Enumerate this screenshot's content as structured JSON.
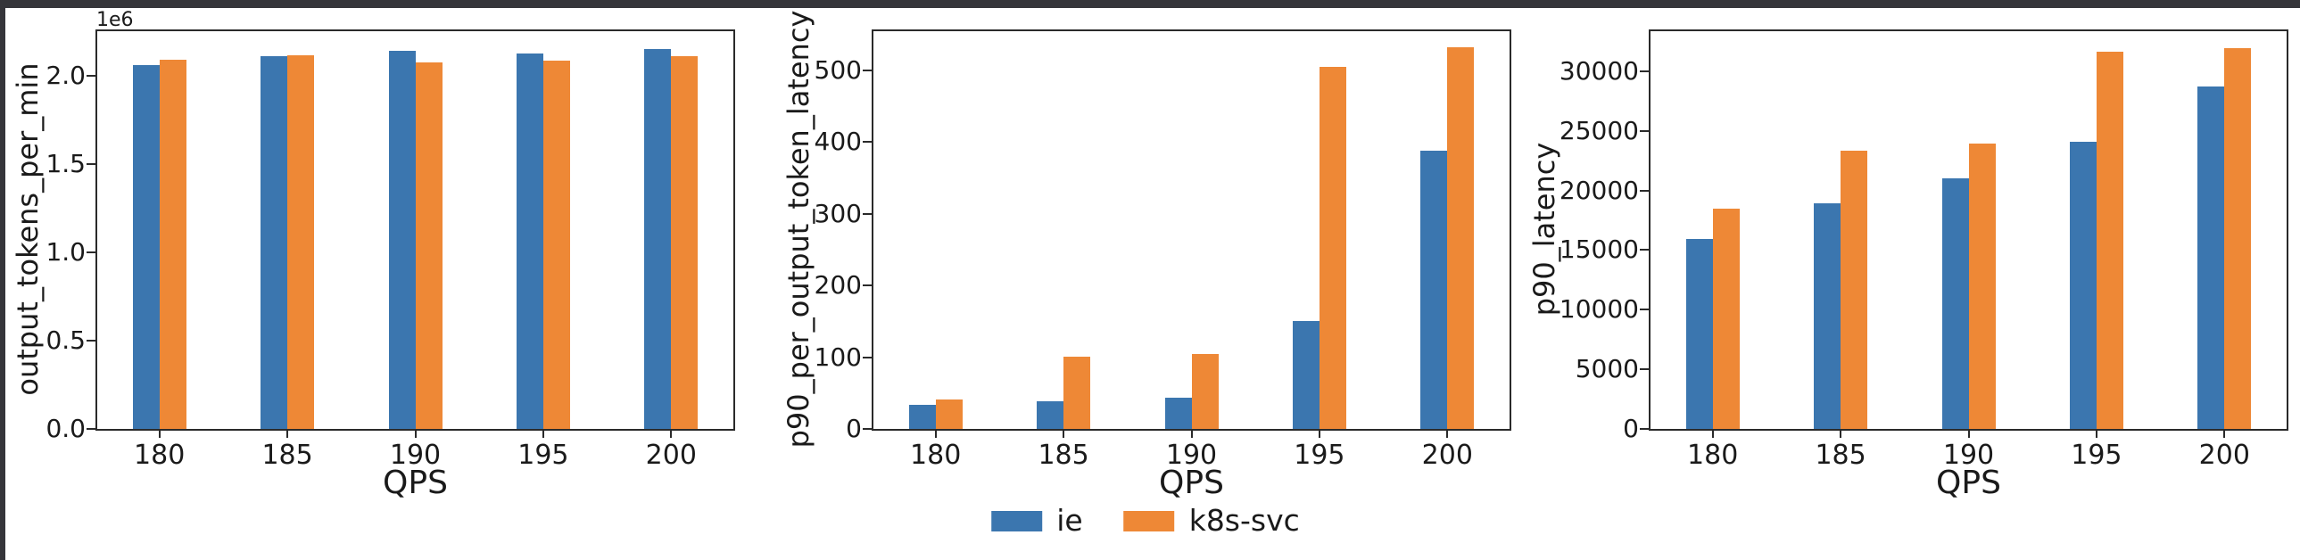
{
  "chart_data": [
    {
      "type": "bar",
      "title": "",
      "xlabel": "QPS",
      "ylabel": "output_tokens_per_min",
      "offset_text": "1e6",
      "categories": [
        "180",
        "185",
        "190",
        "195",
        "200"
      ],
      "series": [
        {
          "name": "ie",
          "color": "#3B76AF",
          "values": [
            2060000,
            2110000,
            2140000,
            2125000,
            2150000
          ]
        },
        {
          "name": "k8s-svc",
          "color": "#EE8836",
          "values": [
            2090000,
            2112000,
            2075000,
            2085000,
            2110000
          ]
        }
      ],
      "ylim": [
        0,
        2260000
      ],
      "yticks": [
        {
          "value": 0,
          "label": "0.0"
        },
        {
          "value": 500000,
          "label": "0.5"
        },
        {
          "value": 1000000,
          "label": "1.0"
        },
        {
          "value": 1500000,
          "label": "1.5"
        },
        {
          "value": 2000000,
          "label": "2.0"
        }
      ],
      "grid": false,
      "legend_position": "figure-bottom-center"
    },
    {
      "type": "bar",
      "title": "",
      "xlabel": "QPS",
      "ylabel": "p90_per_output_token_latency",
      "offset_text": "",
      "categories": [
        "180",
        "185",
        "190",
        "195",
        "200"
      ],
      "series": [
        {
          "name": "ie",
          "color": "#3B76AF",
          "values": [
            33,
            39,
            44,
            150,
            388
          ]
        },
        {
          "name": "k8s-svc",
          "color": "#EE8836",
          "values": [
            41,
            101,
            105,
            505,
            532
          ]
        }
      ],
      "ylim": [
        0,
        557
      ],
      "yticks": [
        {
          "value": 0,
          "label": "0"
        },
        {
          "value": 100,
          "label": "100"
        },
        {
          "value": 200,
          "label": "200"
        },
        {
          "value": 300,
          "label": "300"
        },
        {
          "value": 400,
          "label": "400"
        },
        {
          "value": 500,
          "label": "500"
        }
      ],
      "grid": false,
      "legend_position": "figure-bottom-center"
    },
    {
      "type": "bar",
      "title": "",
      "xlabel": "QPS",
      "ylabel": "p90_latency",
      "offset_text": "",
      "categories": [
        "180",
        "185",
        "190",
        "195",
        "200"
      ],
      "series": [
        {
          "name": "ie",
          "color": "#3B76AF",
          "values": [
            15900,
            18900,
            21000,
            24100,
            28700
          ]
        },
        {
          "name": "k8s-svc",
          "color": "#EE8836",
          "values": [
            18500,
            23300,
            23900,
            31600,
            31900
          ]
        }
      ],
      "ylim": [
        0,
        33500
      ],
      "yticks": [
        {
          "value": 0,
          "label": "0"
        },
        {
          "value": 5000,
          "label": "5000"
        },
        {
          "value": 10000,
          "label": "10000"
        },
        {
          "value": 15000,
          "label": "15000"
        },
        {
          "value": 20000,
          "label": "20000"
        },
        {
          "value": 25000,
          "label": "25000"
        },
        {
          "value": 30000,
          "label": "30000"
        }
      ],
      "grid": false,
      "legend_position": "figure-bottom-center"
    }
  ],
  "legend": {
    "position": "bottom-center",
    "entries": [
      {
        "label": "ie",
        "color": "#3B76AF"
      },
      {
        "label": "k8s-svc",
        "color": "#EE8836"
      }
    ]
  }
}
